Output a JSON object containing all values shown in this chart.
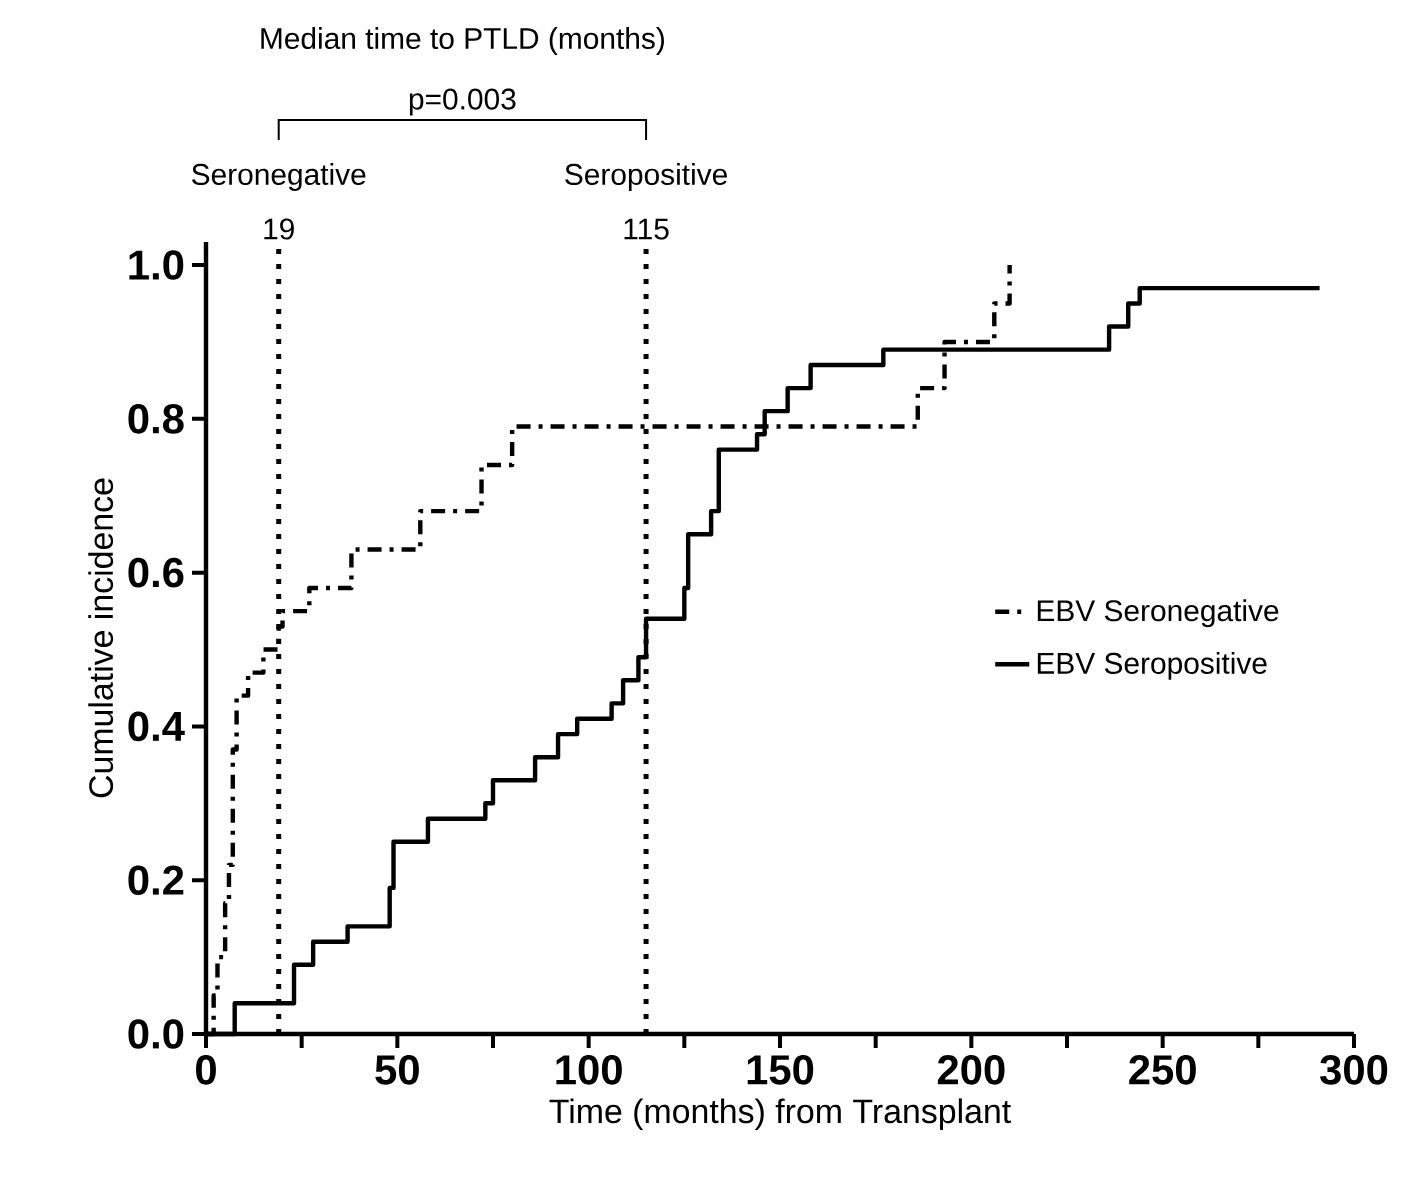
{
  "chart_data": {
    "type": "step",
    "title": "Median time to PTLD (months)",
    "xlabel": "Time (months) from Transplant",
    "ylabel": "Cumulative incidence",
    "annotations": [
      "p=0.003",
      "Seronegative",
      "Seropositive"
    ],
    "xlim": [
      0,
      300
    ],
    "ylim": [
      0,
      1.03
    ],
    "xticks": [
      0,
      {
        "value": 25,
        "label": null
      },
      50,
      {
        "value": 75,
        "label": null
      },
      100,
      {
        "value": 125,
        "label": null
      },
      150,
      {
        "value": 175,
        "label": null
      },
      200,
      {
        "value": 225,
        "label": null
      },
      250,
      {
        "value": 275,
        "label": null
      },
      300
    ],
    "yticks": [
      {
        "value": 0,
        "label": "0.0"
      },
      {
        "value": 0.2,
        "label": "0.2"
      },
      {
        "value": 0.4,
        "label": "0.4"
      },
      {
        "value": 0.6,
        "label": "0.6"
      },
      {
        "value": 0.8,
        "label": "0.8"
      },
      {
        "value": 1.0,
        "label": "1.0"
      }
    ],
    "grid": false,
    "legend": "right",
    "marker": "none",
    "ref_lines": [
      {
        "axis": "x",
        "value": 19,
        "label": "19",
        "line_style": "dotted",
        "color": "#000000"
      },
      {
        "axis": "x",
        "value": 115,
        "label": "115",
        "line_style": "dotted",
        "color": "#000000"
      }
    ],
    "series": [
      {
        "name": "EBV Seronegative",
        "color": "#000000",
        "line_style": "dashed",
        "x": [
          0,
          2,
          3,
          5,
          6,
          7,
          8,
          11,
          15,
          19,
          20,
          27,
          38,
          56,
          72,
          80,
          186,
          193,
          206,
          210
        ],
        "values": [
          0,
          0.05,
          0.1,
          0.17,
          0.22,
          0.37,
          0.44,
          0.47,
          0.5,
          0.53,
          0.55,
          0.58,
          0.63,
          0.68,
          0.74,
          0.79,
          0.84,
          0.9,
          0.95,
          1.0
        ]
      },
      {
        "name": "EBV Seropositive",
        "color": "#000000",
        "line_style": "solid",
        "x": [
          0,
          7.5,
          23,
          28,
          37,
          48,
          49,
          58,
          73,
          75,
          86,
          92,
          97,
          106,
          109,
          113,
          115,
          125,
          126,
          132,
          134,
          144,
          146,
          152,
          158,
          177,
          236,
          241,
          244,
          291
        ],
        "values": [
          0,
          0.04,
          0.09,
          0.12,
          0.14,
          0.19,
          0.25,
          0.28,
          0.3,
          0.33,
          0.36,
          0.39,
          0.41,
          0.43,
          0.46,
          0.49,
          0.54,
          0.58,
          0.65,
          0.68,
          0.76,
          0.78,
          0.81,
          0.84,
          0.87,
          0.89,
          0.92,
          0.95,
          0.97,
          0.97
        ]
      }
    ]
  }
}
